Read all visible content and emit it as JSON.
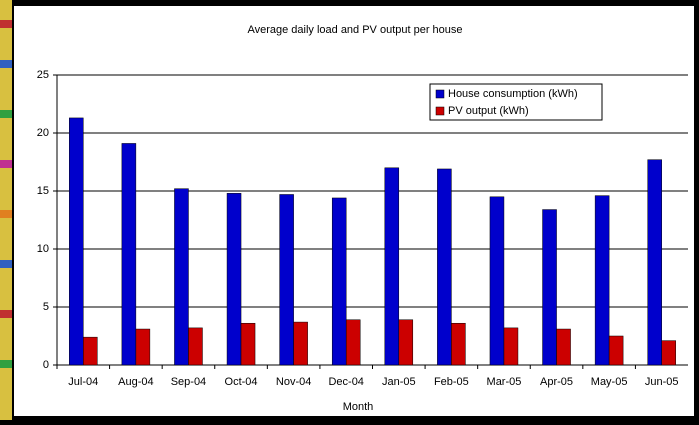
{
  "chart_data": {
    "type": "bar",
    "title": "Average daily load and PV output per house",
    "x_label": "Month",
    "categories": [
      "Jul-04",
      "Aug-04",
      "Sep-04",
      "Oct-04",
      "Nov-04",
      "Dec-04",
      "Jan-05",
      "Feb-05",
      "Mar-05",
      "Apr-05",
      "May-05",
      "Jun-05"
    ],
    "series": [
      {
        "name": "House consumption (kWh)",
        "color": "#0000cc",
        "values": [
          21.3,
          19.1,
          15.2,
          14.8,
          14.7,
          14.4,
          17.0,
          16.9,
          14.5,
          13.4,
          14.6,
          17.7
        ]
      },
      {
        "name": "PV output (kWh)",
        "color": "#cc0000",
        "values": [
          2.4,
          3.1,
          3.2,
          3.6,
          3.7,
          3.9,
          3.9,
          3.6,
          3.2,
          3.1,
          2.5,
          2.1
        ]
      }
    ],
    "ylim": [
      0,
      25
    ],
    "yticks": [
      0,
      5,
      10,
      15,
      20,
      25
    ],
    "grid": true,
    "legend": "top-right"
  }
}
